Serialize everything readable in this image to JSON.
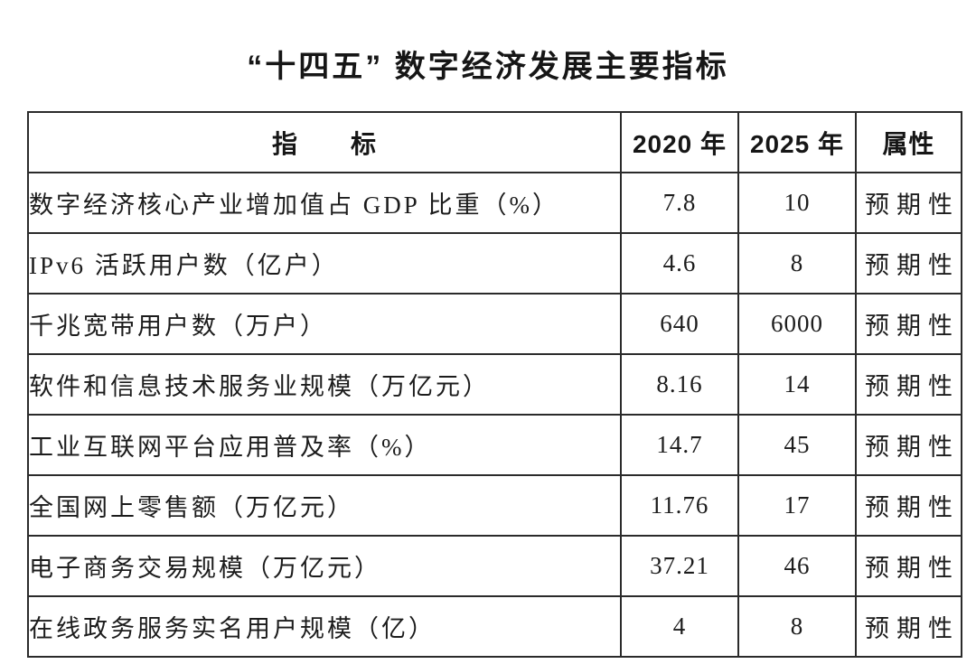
{
  "page": {
    "title": "“十四五” 数字经济发展主要指标"
  },
  "table": {
    "headers": {
      "indicator": "指　　标",
      "y2020": "2020 年",
      "y2025": "2025 年",
      "attribute": "属性"
    },
    "rows": [
      {
        "indicator": "数字经济核心产业增加值占 GDP 比重（%）",
        "y2020": "7.8",
        "y2025": "10",
        "attribute": "预期性"
      },
      {
        "indicator": "IPv6 活跃用户数（亿户）",
        "y2020": "4.6",
        "y2025": "8",
        "attribute": "预期性"
      },
      {
        "indicator": "千兆宽带用户数（万户）",
        "y2020": "640",
        "y2025": "6000",
        "attribute": "预期性"
      },
      {
        "indicator": "软件和信息技术服务业规模（万亿元）",
        "y2020": "8.16",
        "y2025": "14",
        "attribute": "预期性"
      },
      {
        "indicator": "工业互联网平台应用普及率（%）",
        "y2020": "14.7",
        "y2025": "45",
        "attribute": "预期性"
      },
      {
        "indicator": "全国网上零售额（万亿元）",
        "y2020": "11.76",
        "y2025": "17",
        "attribute": "预期性"
      },
      {
        "indicator": "电子商务交易规模（万亿元）",
        "y2020": "37.21",
        "y2025": "46",
        "attribute": "预期性"
      },
      {
        "indicator": "在线政务服务实名用户规模（亿）",
        "y2020": "4",
        "y2025": "8",
        "attribute": "预期性"
      }
    ]
  }
}
